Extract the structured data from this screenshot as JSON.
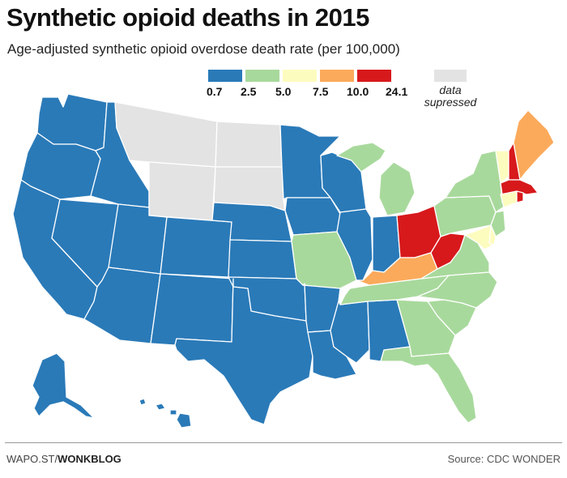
{
  "title": "Synthetic opioid deaths in 2015",
  "subtitle": "Age-adjusted synthetic opioid overdose death rate (per 100,000)",
  "legend": {
    "bins": [
      {
        "label": "0.7",
        "color": "#2a7ab8"
      },
      {
        "label": "2.5",
        "color": "#a8d99c"
      },
      {
        "label": "5.0",
        "color": "#fdfcbf"
      },
      {
        "label": "7.5",
        "color": "#fbaa5b"
      },
      {
        "label": "10.0",
        "color": "#d7191c"
      },
      {
        "label": "24.1",
        "color": ""
      }
    ],
    "no_data_label": "data supressed",
    "no_data_color": "#e3e3e3"
  },
  "states": {
    "WA": "#2a7ab8",
    "OR": "#2a7ab8",
    "CA": "#2a7ab8",
    "NV": "#2a7ab8",
    "ID": "#2a7ab8",
    "UT": "#2a7ab8",
    "AZ": "#2a7ab8",
    "CO": "#2a7ab8",
    "NM": "#2a7ab8",
    "TX": "#2a7ab8",
    "OK": "#2a7ab8",
    "KS": "#2a7ab8",
    "NE": "#2a7ab8",
    "MN": "#2a7ab8",
    "IA": "#2a7ab8",
    "WI": "#2a7ab8",
    "IL": "#2a7ab8",
    "IN": "#2a7ab8",
    "AR": "#2a7ab8",
    "LA": "#2a7ab8",
    "MS": "#2a7ab8",
    "AL": "#2a7ab8",
    "AK": "#2a7ab8",
    "HI": "#2a7ab8",
    "MT": "#e3e3e3",
    "WY": "#e3e3e3",
    "ND": "#e3e3e3",
    "SD": "#e3e3e3",
    "MO": "#a8d99c",
    "MI": "#a8d99c",
    "TN": "#a8d99c",
    "GA": "#a8d99c",
    "FL": "#a8d99c",
    "SC": "#a8d99c",
    "NC": "#a8d99c",
    "VA": "#a8d99c",
    "PA": "#a8d99c",
    "NY": "#a8d99c",
    "NJ": "#a8d99c",
    "VT": "#fdfcbf",
    "CT": "#fdfcbf",
    "DE": "#fdfcbf",
    "MD": "#fdfcbf",
    "ME": "#fbaa5b",
    "KY": "#fbaa5b",
    "OH": "#d7191c",
    "WV": "#d7191c",
    "NH": "#d7191c",
    "MA": "#d7191c",
    "RI": "#d7191c"
  },
  "footer": {
    "credit_prefix": "WAPO.ST/",
    "credit_bold": "WONKBLOG",
    "source": "Source: CDC WONDER"
  }
}
